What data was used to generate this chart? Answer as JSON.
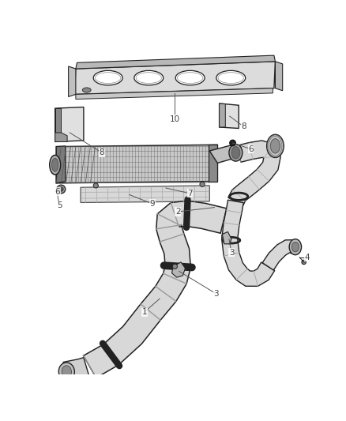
{
  "bg_color": "#ffffff",
  "fig_width": 4.38,
  "fig_height": 5.33,
  "dpi": 100,
  "line_color": "#555555",
  "label_color": "#444444",
  "label_fontsize": 7.5,
  "dark_line": "#222222",
  "mid_gray": "#888888",
  "light_gray": "#cccccc",
  "fill_gray": "#e0e0e0",
  "hose_fill": "#d8d8d8",
  "bracket_fill": "#e8e8e8"
}
